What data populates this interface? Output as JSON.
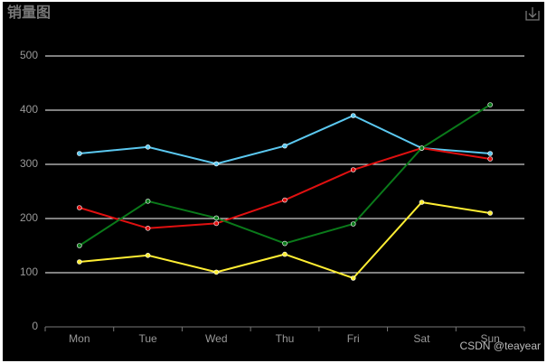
{
  "chart_data": {
    "type": "line",
    "title": "销量图",
    "categories": [
      "Mon",
      "Tue",
      "Wed",
      "Thu",
      "Fri",
      "Sat",
      "Sun"
    ],
    "series": [
      {
        "color": "#5bc8f0",
        "values": [
          320,
          332,
          301,
          334,
          390,
          330,
          320
        ]
      },
      {
        "color": "#e01010",
        "values": [
          220,
          182,
          191,
          234,
          290,
          330,
          310
        ]
      },
      {
        "color": "#0a7a1a",
        "values": [
          150,
          232,
          201,
          154,
          190,
          330,
          410
        ]
      },
      {
        "color": "#ffee33",
        "values": [
          120,
          132,
          101,
          134,
          90,
          230,
          210
        ]
      }
    ],
    "ylim": [
      0,
      500
    ],
    "yticks": [
      0,
      100,
      200,
      300,
      400,
      500
    ],
    "grid": true,
    "watermark": "CSDN @teayear"
  }
}
